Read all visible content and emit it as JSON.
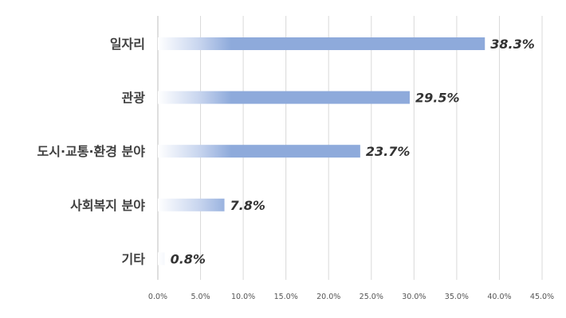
{
  "chart_data": {
    "type": "bar",
    "orientation": "horizontal",
    "categories": [
      "일자리",
      "관광",
      "도시·교통·환경 분야",
      "사회복지 분야",
      "기타"
    ],
    "values": [
      38.3,
      29.5,
      23.7,
      7.8,
      0.8
    ],
    "value_labels": [
      "38.3%",
      "29.5%",
      "23.7%",
      "7.8%",
      "0.8%"
    ],
    "xlim": [
      0,
      45
    ],
    "xticks": [
      0,
      5,
      10,
      15,
      20,
      25,
      30,
      35,
      40,
      45
    ],
    "xtick_labels": [
      "0.0%",
      "5.0%",
      "10.0%",
      "15.0%",
      "20.0%",
      "25.0%",
      "30.0%",
      "35.0%",
      "40.0%",
      "45.0%"
    ],
    "grid": "vertical",
    "bar_color": "#8eaadb"
  }
}
